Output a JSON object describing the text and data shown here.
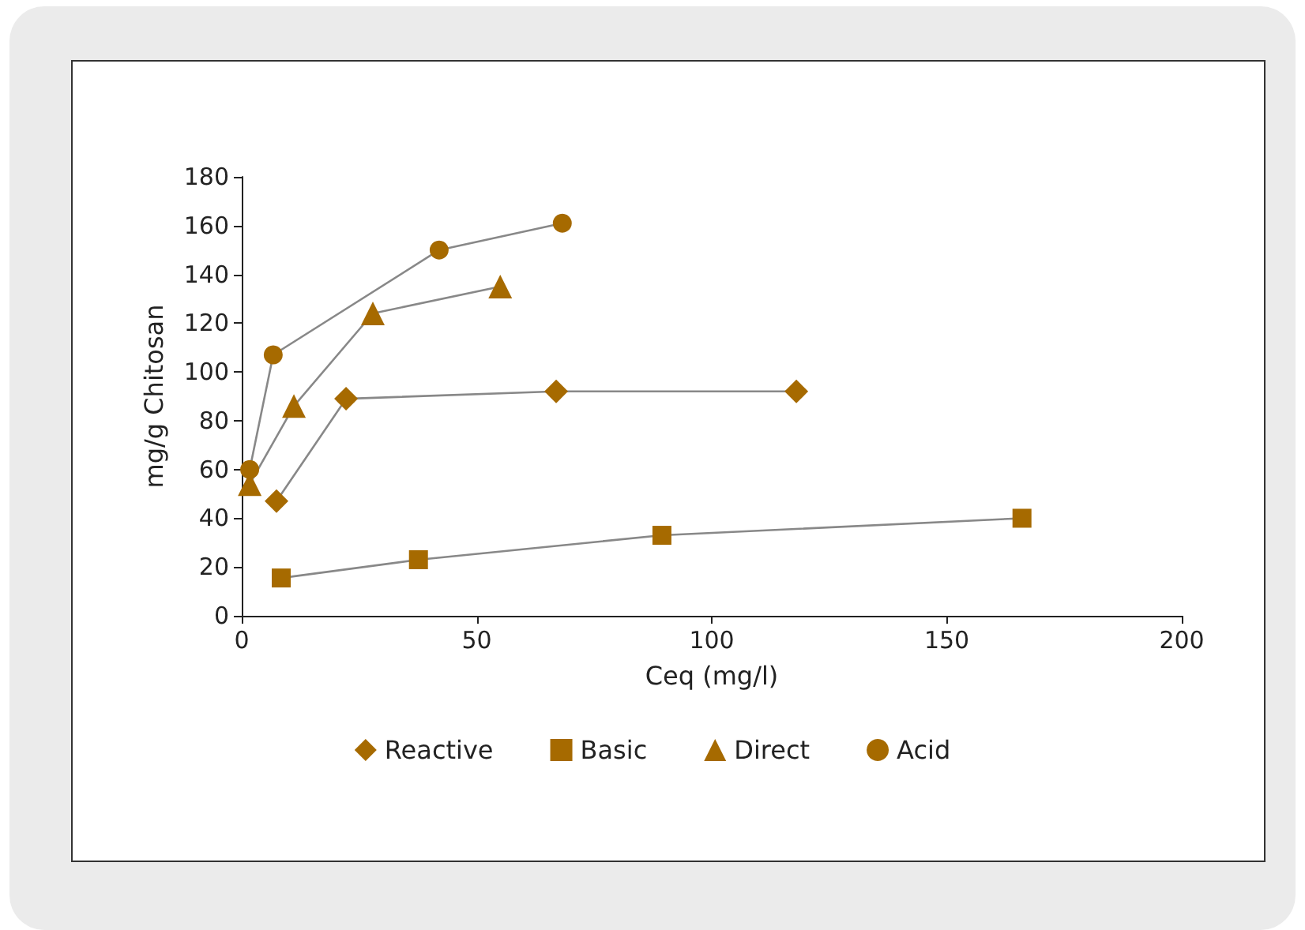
{
  "chart_data": {
    "type": "line",
    "xlabel": "Ceq (mg/l)",
    "ylabel": "mg/g Chitosan",
    "xlim": [
      0,
      200
    ],
    "xticks": [
      0,
      50,
      100,
      150,
      200
    ],
    "ylim": [
      0,
      180
    ],
    "yticks": [
      0,
      20,
      40,
      60,
      80,
      100,
      120,
      140,
      160,
      180
    ],
    "grid": false,
    "legend": "bottom",
    "series": [
      {
        "name": "Reactive",
        "color": "#a66a00",
        "marker": "diamond",
        "x": [
          7.4,
          22.2,
          66.9,
          118
        ],
        "values": [
          47,
          89,
          92,
          92
        ]
      },
      {
        "name": "Basic",
        "color": "#a66a00",
        "marker": "square",
        "x": [
          8.4,
          37.6,
          89.4,
          166
        ],
        "values": [
          15.5,
          23,
          33,
          40
        ]
      },
      {
        "name": "Direct",
        "color": "#a66a00",
        "marker": "triangle",
        "x": [
          1.7,
          11.1,
          27.9,
          55
        ],
        "values": [
          54,
          86,
          124,
          135
        ]
      },
      {
        "name": "Acid",
        "color": "#a66a00",
        "marker": "circle",
        "x": [
          1.7,
          6.7,
          42,
          68.2
        ],
        "values": [
          60,
          107,
          150,
          161
        ]
      }
    ]
  }
}
